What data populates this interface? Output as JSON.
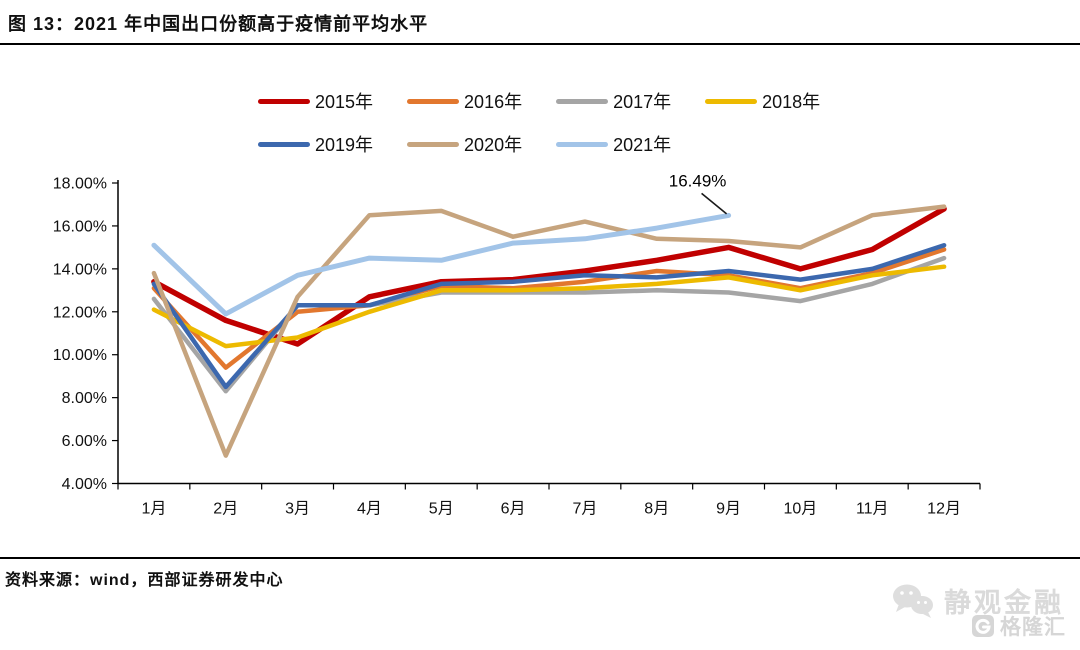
{
  "figure": {
    "title": "图 13：2021 年中国出口份额高于疫情前平均水平",
    "source": "资料来源：wind，西部证券研发中心"
  },
  "legend": {
    "rows": [
      [
        {
          "label": "2015年",
          "color": "#C00000"
        },
        {
          "label": "2016年",
          "color": "#E2772E"
        },
        {
          "label": "2017年",
          "color": "#A5A5A5"
        },
        {
          "label": "2018年",
          "color": "#EDBA00"
        }
      ],
      [
        {
          "label": "2019年",
          "color": "#3C68AE"
        },
        {
          "label": "2020年",
          "color": "#C6A47E"
        },
        {
          "label": "2021年",
          "color": "#A2C4E8"
        }
      ]
    ]
  },
  "chart_data": {
    "type": "line",
    "title": "图 13：2021 年中国出口份额高于疫情前平均水平",
    "x_categories": [
      "1月",
      "2月",
      "3月",
      "4月",
      "5月",
      "6月",
      "7月",
      "8月",
      "9月",
      "10月",
      "11月",
      "12月"
    ],
    "y_axis": {
      "range": [
        4,
        18
      ],
      "tick_step": 2,
      "tick_labels": [
        "18.00%",
        "16.00%",
        "14.00%",
        "12.00%",
        "10.00%",
        "8.00%",
        "6.00%",
        "4.00%"
      ],
      "unit": "%",
      "grid": false
    },
    "legend_position": "top",
    "series": [
      {
        "name": "2015年",
        "color": "#C00000",
        "width": 5.5,
        "values": [
          13.4,
          11.6,
          10.5,
          12.7,
          13.4,
          13.5,
          13.9,
          14.4,
          15.0,
          14.0,
          14.9,
          16.8
        ]
      },
      {
        "name": "2016年",
        "color": "#E2772E",
        "width": 4.5,
        "values": [
          13.1,
          9.4,
          12.0,
          12.3,
          13.2,
          13.1,
          13.4,
          13.9,
          13.7,
          13.1,
          13.8,
          14.9
        ]
      },
      {
        "name": "2017年",
        "color": "#A5A5A5",
        "width": 4.5,
        "values": [
          12.6,
          8.3,
          12.3,
          12.3,
          12.9,
          12.9,
          12.9,
          13.0,
          12.9,
          12.5,
          13.3,
          14.5
        ]
      },
      {
        "name": "2018年",
        "color": "#EDBA00",
        "width": 4.5,
        "values": [
          12.1,
          10.4,
          10.8,
          12.0,
          13.0,
          13.0,
          13.1,
          13.3,
          13.6,
          13.0,
          13.7,
          14.1
        ]
      },
      {
        "name": "2019年",
        "color": "#3C68AE",
        "width": 4.5,
        "values": [
          13.3,
          8.5,
          12.3,
          12.3,
          13.3,
          13.4,
          13.7,
          13.6,
          13.9,
          13.5,
          14.0,
          15.1
        ]
      },
      {
        "name": "2020年",
        "color": "#C6A47E",
        "width": 4.5,
        "values": [
          13.8,
          5.3,
          12.7,
          16.5,
          16.7,
          15.5,
          16.2,
          15.4,
          15.3,
          15.0,
          16.5,
          16.9
        ]
      },
      {
        "name": "2021年",
        "color": "#A2C4E8",
        "width": 5,
        "values": [
          15.1,
          11.9,
          13.7,
          14.5,
          14.4,
          15.2,
          15.4,
          15.9,
          16.49,
          null,
          null,
          null
        ]
      }
    ],
    "annotation": {
      "text": "16.49%",
      "series": "2021年",
      "month_index": 8,
      "value": 16.49
    }
  },
  "watermarks": {
    "wechat_account": "静观金融",
    "platform": "格隆汇"
  }
}
